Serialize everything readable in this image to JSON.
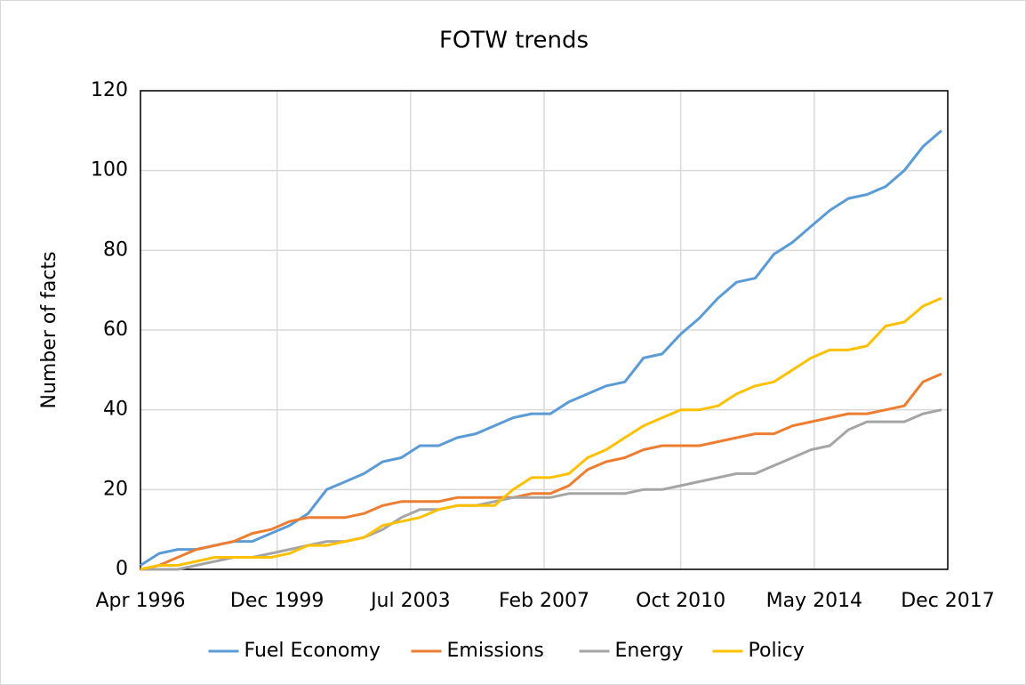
{
  "chart_data": {
    "type": "line",
    "title": "FOTW trends",
    "y_label": "Number of facts",
    "x": [
      "1996-04",
      "1996-10",
      "1997-04",
      "1997-10",
      "1998-04",
      "1998-10",
      "1999-04",
      "1999-10",
      "2000-04",
      "2000-10",
      "2001-04",
      "2001-10",
      "2002-04",
      "2002-10",
      "2003-04",
      "2003-10",
      "2004-04",
      "2004-10",
      "2005-04",
      "2005-10",
      "2006-04",
      "2006-10",
      "2007-04",
      "2007-10",
      "2008-04",
      "2008-10",
      "2009-04",
      "2009-10",
      "2010-04",
      "2010-10",
      "2011-04",
      "2011-10",
      "2012-04",
      "2012-10",
      "2013-04",
      "2013-10",
      "2014-04",
      "2014-10",
      "2015-04",
      "2015-10",
      "2016-04",
      "2016-10",
      "2017-04",
      "2017-10"
    ],
    "series": [
      {
        "name": "Fuel Economy",
        "color": "#5b9bd5",
        "values": [
          1,
          4,
          5,
          5,
          6,
          7,
          7,
          9,
          11,
          14,
          20,
          22,
          24,
          27,
          28,
          31,
          31,
          33,
          34,
          36,
          38,
          39,
          39,
          42,
          44,
          46,
          47,
          53,
          54,
          59,
          63,
          68,
          72,
          73,
          79,
          82,
          86,
          90,
          93,
          94,
          96,
          100,
          106,
          110
        ]
      },
      {
        "name": "Emissions",
        "color": "#ed7d31",
        "values": [
          0,
          1,
          3,
          5,
          6,
          7,
          9,
          10,
          12,
          13,
          13,
          13,
          14,
          16,
          17,
          17,
          17,
          18,
          18,
          18,
          18,
          19,
          19,
          21,
          25,
          27,
          28,
          30,
          31,
          31,
          31,
          32,
          33,
          34,
          34,
          36,
          37,
          38,
          39,
          39,
          40,
          41,
          47,
          49
        ]
      },
      {
        "name": "Energy",
        "color": "#a5a5a5",
        "values": [
          0,
          0,
          0,
          1,
          2,
          3,
          3,
          4,
          5,
          6,
          7,
          7,
          8,
          10,
          13,
          15,
          15,
          16,
          16,
          17,
          18,
          18,
          18,
          19,
          19,
          19,
          19,
          20,
          20,
          21,
          22,
          23,
          24,
          24,
          26,
          28,
          30,
          31,
          35,
          37,
          37,
          37,
          39,
          40
        ]
      },
      {
        "name": "Policy",
        "color": "#ffc000",
        "values": [
          0,
          1,
          1,
          2,
          3,
          3,
          3,
          3,
          4,
          6,
          6,
          7,
          8,
          11,
          12,
          13,
          15,
          16,
          16,
          16,
          20,
          23,
          23,
          24,
          28,
          30,
          33,
          36,
          38,
          40,
          40,
          41,
          44,
          46,
          47,
          50,
          53,
          55,
          55,
          56,
          61,
          62,
          66,
          68
        ]
      }
    ],
    "xlim": [
      "1996-04",
      "2017-12"
    ],
    "xticks": [
      {
        "value": "1996-04",
        "label": "Apr 1996"
      },
      {
        "value": "1999-12",
        "label": "Dec 1999"
      },
      {
        "value": "2003-07",
        "label": "Jul 2003"
      },
      {
        "value": "2007-02",
        "label": "Feb 2007"
      },
      {
        "value": "2010-10",
        "label": "Oct 2010"
      },
      {
        "value": "2014-05",
        "label": "May 2014"
      },
      {
        "value": "2017-12",
        "label": "Dec 2017"
      }
    ],
    "ylim": [
      0,
      120
    ],
    "yticks": [
      0,
      20,
      40,
      60,
      80,
      100,
      120
    ],
    "grid": true,
    "legend": "bottom"
  }
}
